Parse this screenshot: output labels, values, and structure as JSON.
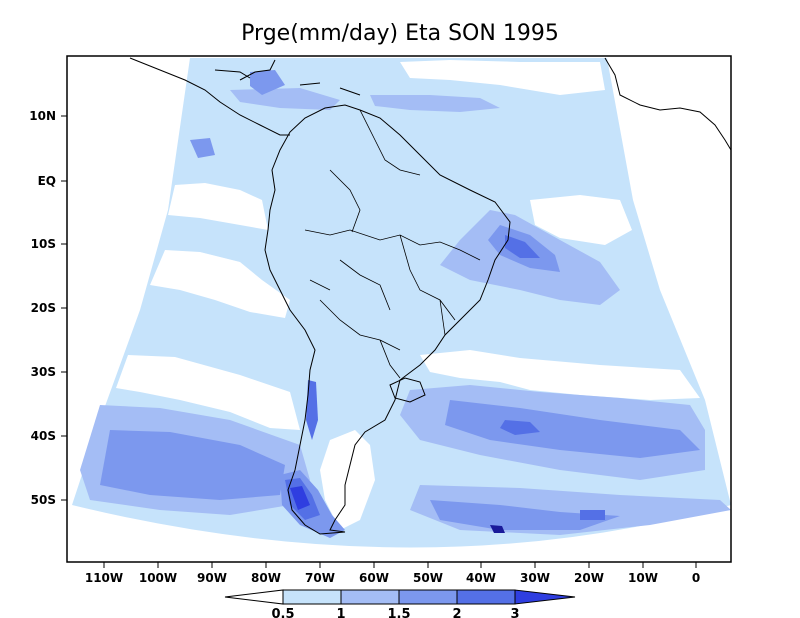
{
  "title": "Prge(mm/day) Eta SON 1995",
  "lat_labels": [
    "10N",
    "EQ",
    "10S",
    "20S",
    "30S",
    "40S",
    "50S"
  ],
  "lon_labels": [
    "110W",
    "100W",
    "90W",
    "80W",
    "70W",
    "60W",
    "50W",
    "40W",
    "30W",
    "20W",
    "10W",
    "0"
  ],
  "colorbar": {
    "labels": [
      "0.5",
      "1",
      "1.5",
      "2",
      "3"
    ],
    "colors": [
      "#ffffff",
      "#c6e3fb",
      "#a4bdf5",
      "#7c98ee",
      "#5470e6",
      "#2f3ee0"
    ]
  },
  "shading_colors": {
    "lightest": "#c6e3fb",
    "light": "#a4bdf5",
    "medium": "#7c98ee",
    "dark": "#5470e6",
    "darkest": "#2f3ee0",
    "extreme": "#1a1a9a"
  }
}
